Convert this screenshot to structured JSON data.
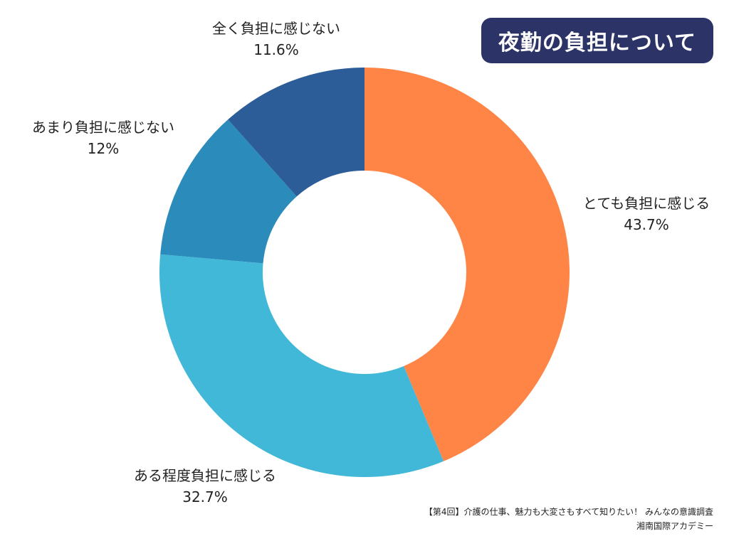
{
  "title": "夜勤の負担について",
  "colors": {
    "title_bg": "#2c3366",
    "title_text": "#ffffff",
    "hole": "#ffffff",
    "label_text": "#222222"
  },
  "chart_data": {
    "type": "pie",
    "title": "夜勤の負担について",
    "donut": true,
    "legend": "none",
    "slices": [
      {
        "label": "とても負担に感じる",
        "value": 43.7,
        "value_label": "43.7%",
        "color": "#ff8547"
      },
      {
        "label": "ある程度負担に感じる",
        "value": 32.7,
        "value_label": "32.7%",
        "color": "#41b8d7"
      },
      {
        "label": "あまり負担に感じない",
        "value": 12,
        "value_label": "12%",
        "color": "#2b8bbb"
      },
      {
        "label": "全く負担に感じない",
        "value": 11.6,
        "value_label": "11.6%",
        "color": "#2c5d98"
      }
    ]
  },
  "footer": {
    "line1": "【第4回】介護の仕事、魅力も大変さもすべて知りたい！ みんなの意識調査",
    "line2": "湘南国際アカデミー"
  }
}
